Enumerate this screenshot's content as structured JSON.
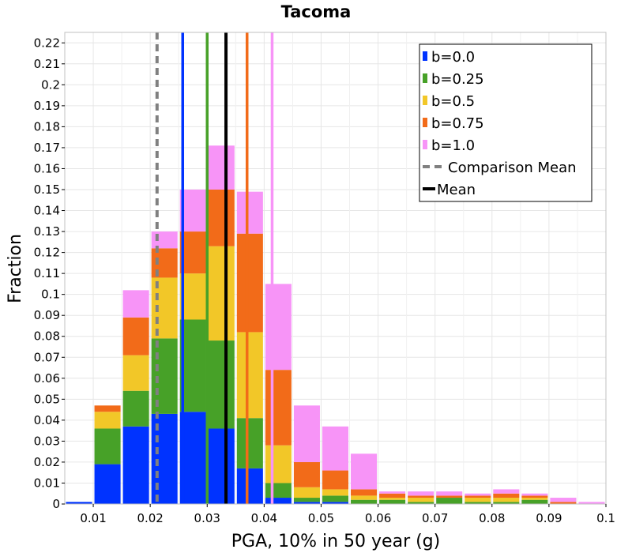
{
  "chart_data": {
    "type": "bar",
    "title": "Tacoma",
    "xlabel": "PGA, 10% in 50 year (g)",
    "ylabel": "Fraction",
    "xlim": [
      0.005,
      0.1
    ],
    "ylim": [
      0,
      0.225
    ],
    "x_ticks": [
      "0.01",
      "0.02",
      "0.03",
      "0.04",
      "0.05",
      "0.06",
      "0.07",
      "0.08",
      "0.09",
      "0.1"
    ],
    "y_ticks": [
      "0",
      "0.01",
      "0.02",
      "0.03",
      "0.04",
      "0.05",
      "0.06",
      "0.07",
      "0.08",
      "0.09",
      "0.1",
      "0.11",
      "0.12",
      "0.13",
      "0.14",
      "0.15",
      "0.16",
      "0.17",
      "0.18",
      "0.19",
      "0.2",
      "0.21",
      "0.22"
    ],
    "grid": true,
    "stacked": true,
    "bin_width": 0.005,
    "bin_centers": [
      0.0075,
      0.0125,
      0.0175,
      0.0225,
      0.0275,
      0.0325,
      0.0375,
      0.0425,
      0.0475,
      0.0525,
      0.0575,
      0.0625,
      0.0675,
      0.0725,
      0.0775,
      0.0825,
      0.0875,
      0.0925,
      0.0975
    ],
    "series": [
      {
        "name": "b=0.0",
        "color": "#0033ff",
        "values": [
          0.001,
          0.019,
          0.037,
          0.043,
          0.044,
          0.036,
          0.017,
          0.003,
          0.001,
          0.001,
          0,
          0,
          0,
          0,
          0,
          0,
          0,
          0,
          0
        ]
      },
      {
        "name": "b=0.25",
        "color": "#47a128",
        "values": [
          0,
          0.017,
          0.017,
          0.036,
          0.044,
          0.042,
          0.024,
          0.007,
          0.002,
          0.003,
          0.002,
          0.002,
          0.001,
          0.003,
          0.001,
          0.001,
          0.002,
          0,
          0
        ]
      },
      {
        "name": "b=0.5",
        "color": "#f2c728",
        "values": [
          0,
          0.008,
          0.017,
          0.029,
          0.022,
          0.045,
          0.041,
          0.018,
          0.005,
          0.003,
          0.002,
          0.001,
          0.002,
          0,
          0.002,
          0.002,
          0.001,
          0,
          0
        ]
      },
      {
        "name": "b=0.75",
        "color": "#f26b19",
        "values": [
          0,
          0.003,
          0.018,
          0.014,
          0.02,
          0.027,
          0.047,
          0.036,
          0.012,
          0.009,
          0.003,
          0.002,
          0.001,
          0.001,
          0.001,
          0.002,
          0.001,
          0.001,
          0
        ]
      },
      {
        "name": "b=1.0",
        "color": "#f794f7",
        "values": [
          0,
          0,
          0.013,
          0.008,
          0.02,
          0.021,
          0.02,
          0.041,
          0.027,
          0.021,
          0.017,
          0.001,
          0.002,
          0.002,
          0.001,
          0.002,
          0.001,
          0.002,
          0.001
        ]
      }
    ],
    "comparison_mean": {
      "name": "Comparison Mean",
      "x": 0.0212,
      "color": "#808080",
      "style": "dashed"
    },
    "means": [
      {
        "series": "b=0.0",
        "x": 0.0257,
        "color": "#0033ff"
      },
      {
        "series": "b=0.25",
        "x": 0.03,
        "color": "#47a128"
      },
      {
        "series": "b=0.75",
        "x": 0.037,
        "color": "#f26b19"
      },
      {
        "series": "b=1.0",
        "x": 0.0414,
        "color": "#f794f7"
      },
      {
        "series": "all",
        "x": 0.0333,
        "color": "#000000"
      }
    ],
    "legend": {
      "position": "top-right",
      "entries": [
        {
          "label": "b=0.0",
          "color": "#0033ff",
          "kind": "bar"
        },
        {
          "label": "b=0.25",
          "color": "#47a128",
          "kind": "bar"
        },
        {
          "label": "b=0.5",
          "color": "#f2c728",
          "kind": "bar"
        },
        {
          "label": "b=0.75",
          "color": "#f26b19",
          "kind": "bar"
        },
        {
          "label": "b=1.0",
          "color": "#f794f7",
          "kind": "bar"
        },
        {
          "label": "Comparison Mean",
          "color": "#808080",
          "kind": "dashed-line"
        },
        {
          "label": "Mean",
          "color": "#000000",
          "kind": "line"
        }
      ]
    }
  }
}
